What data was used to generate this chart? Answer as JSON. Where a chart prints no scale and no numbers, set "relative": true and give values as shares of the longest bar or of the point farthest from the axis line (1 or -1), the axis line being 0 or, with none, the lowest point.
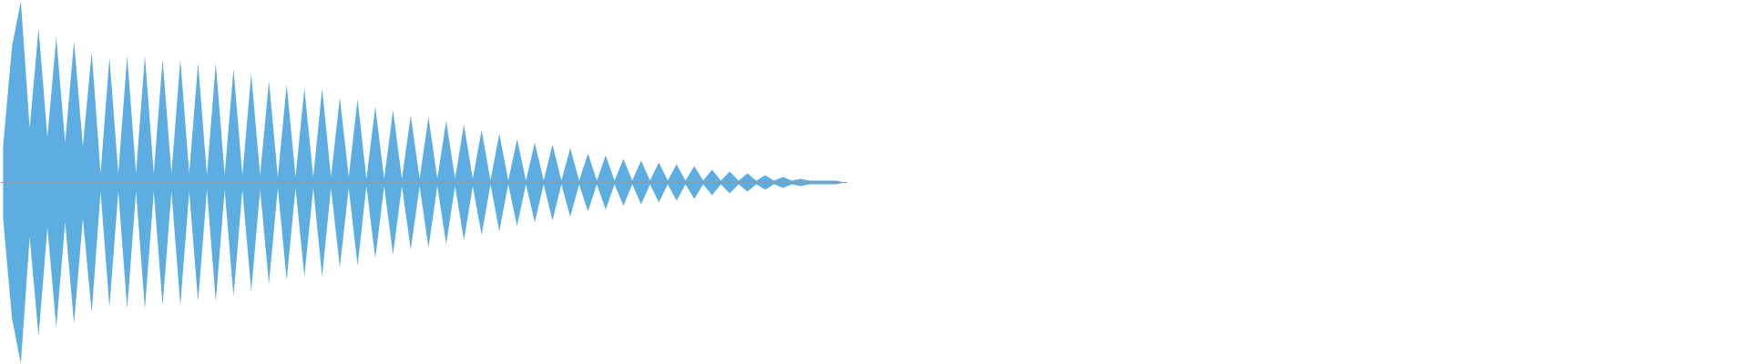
{
  "chart_data": {
    "type": "area",
    "relative": true,
    "grid": false,
    "tick_labels": false,
    "categories": [
      null,
      null,
      null,
      null,
      null,
      null,
      null,
      null,
      null,
      null,
      null,
      null,
      null,
      null,
      null,
      null,
      null,
      null,
      null,
      null,
      null,
      null,
      null,
      null,
      null,
      null,
      null,
      null,
      null,
      null,
      null,
      null,
      null,
      null,
      null,
      null,
      null,
      null,
      null,
      null,
      null,
      null,
      null,
      null,
      null,
      null,
      null,
      null,
      null,
      null,
      null,
      null,
      null,
      null,
      null,
      null,
      null,
      null,
      null,
      null,
      null,
      null,
      null,
      null,
      null,
      null,
      null,
      null,
      null,
      null,
      null,
      null,
      null,
      null,
      null,
      null,
      null,
      null,
      null,
      null,
      null,
      null,
      null,
      null,
      null,
      null,
      null,
      null,
      null,
      null,
      null,
      null,
      null,
      null,
      null,
      null
    ],
    "series": [
      {
        "color": "#5dade2",
        "values": [
          0.2,
          0.75,
          1.0,
          0.3,
          0.85,
          0.25,
          0.8,
          0.22,
          0.78,
          0.2,
          0.72,
          0.05,
          0.69,
          0.05,
          0.7,
          0.05,
          0.7,
          0.05,
          0.68,
          0.05,
          0.68,
          0.05,
          0.66,
          0.04,
          0.66,
          0.04,
          0.63,
          0.04,
          0.6,
          0.04,
          0.56,
          0.03,
          0.54,
          0.03,
          0.52,
          0.03,
          0.52,
          0.03,
          0.47,
          0.03,
          0.46,
          0.02,
          0.42,
          0.02,
          0.4,
          0.02,
          0.37,
          0.02,
          0.36,
          0.02,
          0.34,
          0.02,
          0.32,
          0.02,
          0.29,
          0.01,
          0.27,
          0.01,
          0.24,
          0.01,
          0.22,
          0.01,
          0.21,
          0.01,
          0.19,
          0.01,
          0.16,
          0.01,
          0.15,
          0.01,
          0.13,
          0.01,
          0.12,
          0.01,
          0.11,
          0.01,
          0.1,
          0.01,
          0.09,
          0.01,
          0.07,
          0.01,
          0.06,
          0.01,
          0.05,
          0.01,
          0.04,
          0.01,
          0.03,
          0.01,
          0.02,
          0.01,
          0.01,
          0.01,
          0.01,
          0
        ]
      },
      {
        "color": "#5caee1",
        "values": [
          -0.2,
          -0.75,
          -1.0,
          -0.3,
          -0.85,
          -0.25,
          -0.8,
          -0.22,
          -0.78,
          -0.2,
          -0.72,
          -0.05,
          -0.69,
          -0.05,
          -0.7,
          -0.05,
          -0.7,
          -0.05,
          -0.68,
          -0.05,
          -0.68,
          -0.05,
          -0.66,
          -0.04,
          -0.66,
          -0.04,
          -0.63,
          -0.04,
          -0.6,
          -0.04,
          -0.56,
          -0.03,
          -0.54,
          -0.03,
          -0.52,
          -0.03,
          -0.52,
          -0.03,
          -0.47,
          -0.03,
          -0.46,
          -0.02,
          -0.42,
          -0.02,
          -0.4,
          -0.02,
          -0.37,
          -0.02,
          -0.36,
          -0.02,
          -0.34,
          -0.02,
          -0.32,
          -0.02,
          -0.29,
          -0.01,
          -0.27,
          -0.01,
          -0.24,
          -0.01,
          -0.22,
          -0.01,
          -0.21,
          -0.01,
          -0.19,
          -0.01,
          -0.16,
          -0.01,
          -0.15,
          -0.01,
          -0.13,
          -0.01,
          -0.12,
          -0.01,
          -0.11,
          -0.01,
          -0.1,
          -0.01,
          -0.09,
          -0.01,
          -0.07,
          -0.01,
          -0.06,
          -0.01,
          -0.05,
          -0.01,
          -0.04,
          -0.01,
          -0.03,
          -0.01,
          -0.02,
          -0.01,
          -0.01,
          -0.01,
          -0.01,
          0
        ]
      }
    ]
  }
}
